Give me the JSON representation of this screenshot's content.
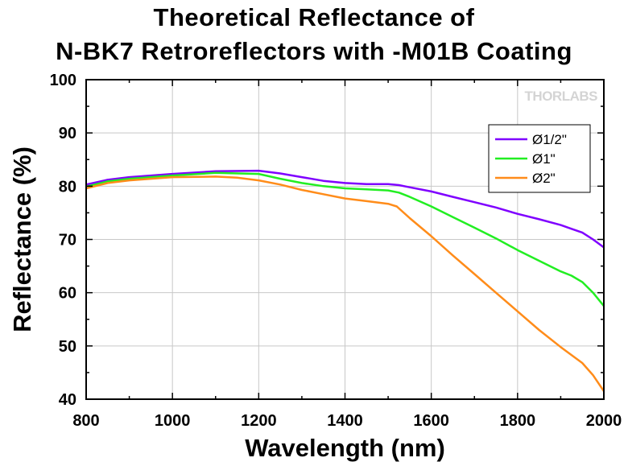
{
  "chart_data": {
    "type": "line",
    "title_line1": "Theoretical Reflectance of",
    "title_line2": "N-BK7 Retroreflectors with -M01B Coating",
    "xlabel": "Wavelength (nm)",
    "ylabel": "Reflectance (%)",
    "xlim": [
      800,
      2000
    ],
    "ylim": [
      40,
      100
    ],
    "xticks": [
      800,
      1000,
      1200,
      1400,
      1600,
      1800,
      2000
    ],
    "yticks": [
      40,
      50,
      60,
      70,
      80,
      90,
      100
    ],
    "grid": true,
    "legend_position": "top-right",
    "watermark": "THORLABS",
    "series": [
      {
        "name": "Ø1/2\"",
        "color": "#7f00ff",
        "points": [
          [
            800,
            80.3
          ],
          [
            850,
            81.2
          ],
          [
            900,
            81.7
          ],
          [
            1000,
            82.3
          ],
          [
            1100,
            82.8
          ],
          [
            1200,
            82.9
          ],
          [
            1250,
            82.4
          ],
          [
            1300,
            81.7
          ],
          [
            1350,
            81.0
          ],
          [
            1400,
            80.6
          ],
          [
            1450,
            80.4
          ],
          [
            1500,
            80.4
          ],
          [
            1525,
            80.2
          ],
          [
            1550,
            79.8
          ],
          [
            1600,
            79.0
          ],
          [
            1650,
            78.0
          ],
          [
            1700,
            77.0
          ],
          [
            1750,
            76.0
          ],
          [
            1800,
            74.8
          ],
          [
            1850,
            73.8
          ],
          [
            1900,
            72.7
          ],
          [
            1925,
            72.0
          ],
          [
            1950,
            71.3
          ],
          [
            1975,
            70.0
          ],
          [
            2000,
            68.5
          ]
        ]
      },
      {
        "name": "Ø1\"",
        "color": "#22ee22",
        "points": [
          [
            800,
            79.9
          ],
          [
            850,
            80.9
          ],
          [
            900,
            81.4
          ],
          [
            1000,
            82.0
          ],
          [
            1100,
            82.5
          ],
          [
            1200,
            82.3
          ],
          [
            1250,
            81.4
          ],
          [
            1300,
            80.6
          ],
          [
            1350,
            80.0
          ],
          [
            1400,
            79.6
          ],
          [
            1450,
            79.4
          ],
          [
            1500,
            79.2
          ],
          [
            1525,
            78.8
          ],
          [
            1550,
            78.0
          ],
          [
            1600,
            76.2
          ],
          [
            1650,
            74.2
          ],
          [
            1700,
            72.2
          ],
          [
            1750,
            70.2
          ],
          [
            1800,
            68.0
          ],
          [
            1850,
            66.0
          ],
          [
            1900,
            64.0
          ],
          [
            1925,
            63.2
          ],
          [
            1950,
            62.0
          ],
          [
            1975,
            60.0
          ],
          [
            2000,
            57.5
          ]
        ]
      },
      {
        "name": "Ø2\"",
        "color": "#ff8c1a",
        "points": [
          [
            800,
            79.6
          ],
          [
            850,
            80.6
          ],
          [
            900,
            81.1
          ],
          [
            1000,
            81.7
          ],
          [
            1100,
            81.8
          ],
          [
            1150,
            81.6
          ],
          [
            1200,
            81.1
          ],
          [
            1250,
            80.3
          ],
          [
            1300,
            79.3
          ],
          [
            1350,
            78.5
          ],
          [
            1400,
            77.7
          ],
          [
            1450,
            77.2
          ],
          [
            1500,
            76.7
          ],
          [
            1520,
            76.2
          ],
          [
            1550,
            74.0
          ],
          [
            1600,
            70.6
          ],
          [
            1650,
            67.0
          ],
          [
            1700,
            63.5
          ],
          [
            1750,
            60.0
          ],
          [
            1800,
            56.5
          ],
          [
            1850,
            53.0
          ],
          [
            1900,
            49.8
          ],
          [
            1950,
            46.8
          ],
          [
            1975,
            44.5
          ],
          [
            2000,
            41.5
          ]
        ]
      }
    ]
  }
}
